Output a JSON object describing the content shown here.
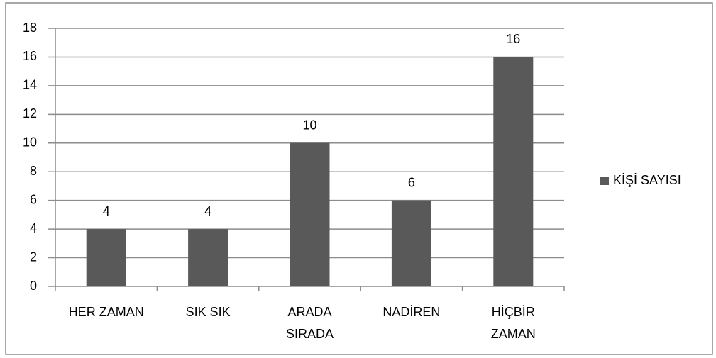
{
  "chart_data": {
    "type": "bar",
    "categories": [
      "HER ZAMAN",
      "SIK SIK",
      "ARADA SIRADA",
      "NADİREN",
      "HİÇBİR ZAMAN"
    ],
    "series": [
      {
        "name": "KİŞİ SAYISI",
        "color": "#595959",
        "values": [
          4,
          4,
          10,
          6,
          16
        ]
      }
    ],
    "ylim": [
      0,
      18
    ],
    "yticks": [
      0,
      2,
      4,
      6,
      8,
      10,
      12,
      14,
      16,
      18
    ],
    "grid": true,
    "legend": "right"
  }
}
